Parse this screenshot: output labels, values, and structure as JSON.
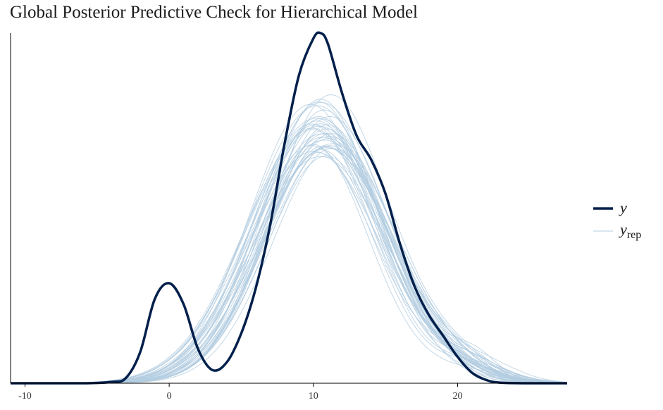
{
  "chart_data": {
    "type": "line",
    "title": "Global Posterior Predictive Check for Hierarchical Model",
    "xlabel": "",
    "ylabel": "",
    "xlim": [
      -11,
      27.6
    ],
    "ylim": [
      0,
      0.133
    ],
    "x_ticks": [
      -10,
      0,
      10,
      20
    ],
    "y_axis_ticks_shown": false,
    "grid": false,
    "legend_position": "right",
    "legend": [
      {
        "name": "y",
        "subscript": "",
        "color": "#011f4b",
        "style": "thick"
      },
      {
        "name": "y",
        "subscript": "rep",
        "color": "#b3cde0",
        "style": "thin"
      }
    ],
    "colors": {
      "y": "#011f4b",
      "yrep": "#b3cde0",
      "axis": "#000000"
    },
    "series": [
      {
        "name": "y",
        "x": [
          -11,
          -6,
          -4,
          -3,
          -2,
          -1,
          0,
          1,
          2,
          3,
          4,
          5,
          6,
          7,
          8,
          9,
          10,
          10.5,
          11,
          12,
          13,
          14,
          15,
          16,
          17,
          18,
          19,
          20,
          21,
          22,
          23,
          25,
          27.6
        ],
        "y": [
          0,
          0,
          0.0005,
          0.002,
          0.012,
          0.032,
          0.038,
          0.03,
          0.013,
          0.005,
          0.008,
          0.019,
          0.036,
          0.06,
          0.091,
          0.117,
          0.131,
          0.133,
          0.129,
          0.11,
          0.094,
          0.085,
          0.072,
          0.053,
          0.037,
          0.026,
          0.018,
          0.01,
          0.004,
          0.0012,
          0.0002,
          0,
          0
        ]
      }
    ],
    "yrep_draws": 40
  }
}
